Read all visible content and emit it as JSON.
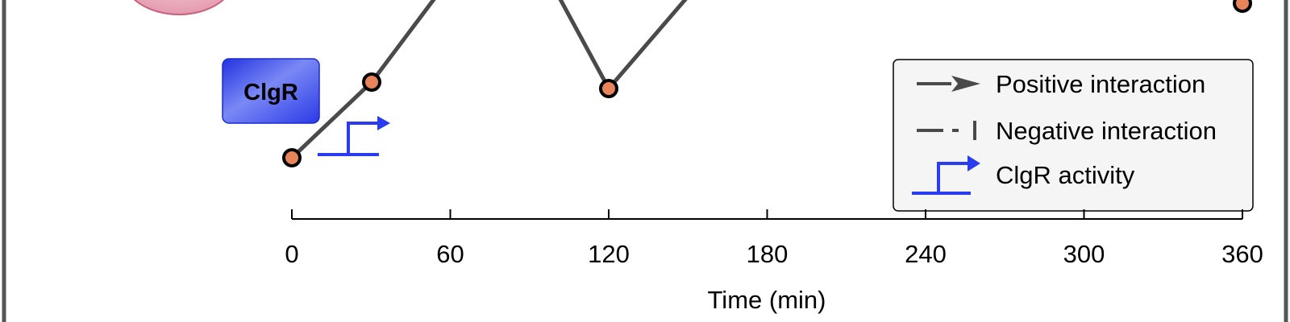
{
  "protein_label": "ClgR",
  "legend": {
    "positive_label": "Positive interaction",
    "negative_label": "Negative interaction",
    "activity_label": "ClgR activity"
  },
  "x_axis": {
    "label": "Time (min)",
    "ticks": [
      "0",
      "60",
      "120",
      "180",
      "240",
      "300",
      "360"
    ]
  },
  "chart_data": {
    "type": "line",
    "x": [
      0,
      30,
      120,
      360
    ],
    "xlabel": "Time (min)",
    "xlim": [
      0,
      360
    ],
    "line_color": "#4a4a4a",
    "marker_color": "#e8845a"
  },
  "colors": {
    "frame": "#555555",
    "line": "#4a4a4a",
    "marker_fill": "#e8845a",
    "protein_box": "#3b4ee8",
    "activity_arrow": "#2a3cf0",
    "legend_bg": "#f5f5f5",
    "ellipse": "#e8a9b8"
  }
}
